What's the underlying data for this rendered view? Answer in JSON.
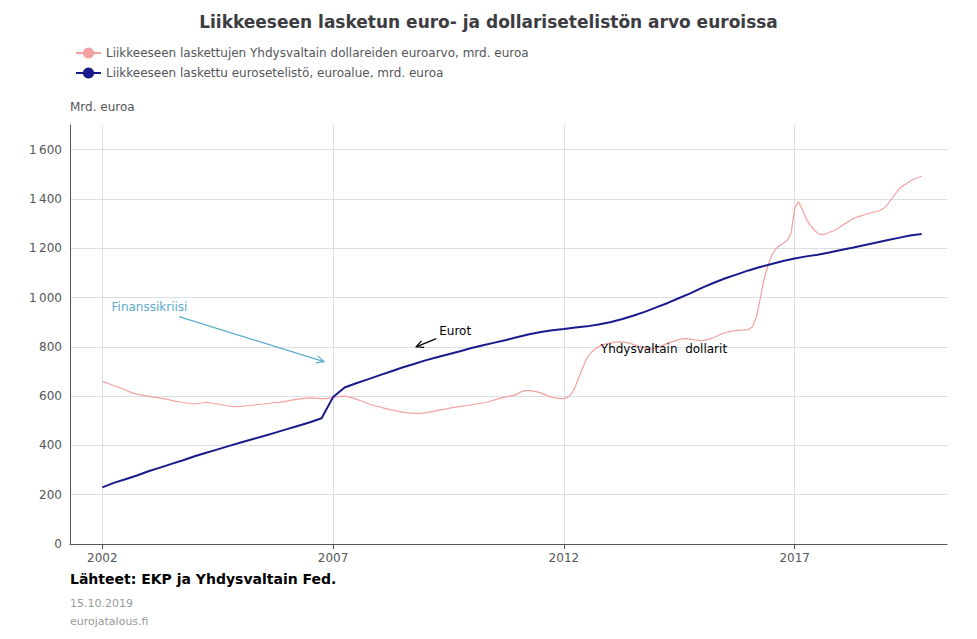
{
  "chart_data": {
    "type": "line",
    "title": "Liikkeeseen lasketun euro- ja dollarisetelistön arvo euroissa",
    "y_label": "Mrd. euroa",
    "xlim": [
      2001.3,
      2020.3
    ],
    "xticks": [
      2002,
      2007,
      2012,
      2017
    ],
    "ylim": [
      0,
      1700
    ],
    "yticks": [
      0,
      200,
      400,
      600,
      800,
      {
        "value": 1000,
        "label": "1 000"
      },
      {
        "value": 1200,
        "label": "1 200"
      },
      {
        "value": 1400,
        "label": "1 400"
      },
      {
        "value": 1600,
        "label": "1 600"
      }
    ],
    "grid": true,
    "legend": "upper left",
    "series": [
      {
        "name": "Liikkeeseen laskettujen Yhdysvaltain dollareiden euroarvo, mrd. euroa",
        "color": "#f4a0a0",
        "x": [
          2002.0,
          2002.08,
          2002.17,
          2002.25,
          2002.33,
          2002.42,
          2002.5,
          2002.58,
          2002.67,
          2002.75,
          2002.83,
          2002.92,
          2003.0,
          2003.08,
          2003.17,
          2003.25,
          2003.33,
          2003.42,
          2003.5,
          2003.58,
          2003.67,
          2003.75,
          2003.83,
          2003.92,
          2004.0,
          2004.08,
          2004.17,
          2004.25,
          2004.33,
          2004.42,
          2004.5,
          2004.58,
          2004.67,
          2004.75,
          2004.83,
          2004.92,
          2005.0,
          2005.08,
          2005.17,
          2005.25,
          2005.33,
          2005.42,
          2005.5,
          2005.58,
          2005.67,
          2005.75,
          2005.83,
          2005.92,
          2006.0,
          2006.08,
          2006.17,
          2006.25,
          2006.33,
          2006.42,
          2006.5,
          2006.58,
          2006.67,
          2006.75,
          2006.83,
          2006.92,
          2007.0,
          2007.08,
          2007.17,
          2007.25,
          2007.33,
          2007.42,
          2007.5,
          2007.58,
          2007.67,
          2007.75,
          2007.83,
          2007.92,
          2008.0,
          2008.08,
          2008.17,
          2008.25,
          2008.33,
          2008.42,
          2008.5,
          2008.58,
          2008.67,
          2008.75,
          2008.83,
          2008.92,
          2009.0,
          2009.08,
          2009.17,
          2009.25,
          2009.33,
          2009.42,
          2009.5,
          2009.58,
          2009.67,
          2009.75,
          2009.83,
          2009.92,
          2010.0,
          2010.08,
          2010.17,
          2010.25,
          2010.33,
          2010.42,
          2010.5,
          2010.58,
          2010.67,
          2010.75,
          2010.83,
          2010.92,
          2011.0,
          2011.08,
          2011.17,
          2011.25,
          2011.33,
          2011.42,
          2011.5,
          2011.58,
          2011.67,
          2011.75,
          2011.83,
          2011.92,
          2012.0,
          2012.08,
          2012.17,
          2012.25,
          2012.33,
          2012.42,
          2012.5,
          2012.58,
          2012.67,
          2012.75,
          2012.83,
          2012.92,
          2013.0,
          2013.08,
          2013.17,
          2013.25,
          2013.33,
          2013.42,
          2013.5,
          2013.58,
          2013.67,
          2013.75,
          2013.83,
          2013.92,
          2014.0,
          2014.08,
          2014.17,
          2014.25,
          2014.33,
          2014.42,
          2014.5,
          2014.58,
          2014.67,
          2014.75,
          2014.83,
          2014.92,
          2015.0,
          2015.08,
          2015.17,
          2015.25,
          2015.33,
          2015.42,
          2015.5,
          2015.58,
          2015.67,
          2015.75,
          2015.83,
          2015.92,
          2016.0,
          2016.08,
          2016.17,
          2016.25,
          2016.33,
          2016.42,
          2016.5,
          2016.58,
          2016.67,
          2016.75,
          2016.83,
          2016.92,
          2017.0,
          2017.08,
          2017.17,
          2017.25,
          2017.33,
          2017.42,
          2017.5,
          2017.58,
          2017.67,
          2017.75,
          2017.83,
          2017.92,
          2018.0,
          2018.08,
          2018.17,
          2018.25,
          2018.33,
          2018.42,
          2018.5,
          2018.58,
          2018.67,
          2018.75,
          2018.83,
          2018.92,
          2019.0,
          2019.08,
          2019.17,
          2019.25,
          2019.33,
          2019.42,
          2019.5,
          2019.58,
          2019.67,
          2019.75
        ],
        "values": [
          660,
          655,
          648,
          642,
          638,
          632,
          625,
          618,
          612,
          608,
          605,
          602,
          600,
          597,
          595,
          592,
          590,
          587,
          583,
          580,
          577,
          574,
          572,
          570,
          568,
          570,
          572,
          575,
          573,
          570,
          568,
          565,
          562,
          560,
          558,
          557,
          558,
          560,
          562,
          563,
          565,
          567,
          568,
          570,
          572,
          574,
          575,
          577,
          580,
          583,
          586,
          588,
          590,
          592,
          593,
          592,
          591,
          590,
          590,
          592,
          594,
          597,
          599,
          600,
          597,
          593,
          588,
          582,
          576,
          570,
          565,
          560,
          557,
          552,
          548,
          544,
          541,
          538,
          535,
          533,
          531,
          530,
          530,
          531,
          532,
          535,
          538,
          541,
          544,
          547,
          550,
          553,
          555,
          558,
          560,
          562,
          565,
          568,
          570,
          572,
          575,
          580,
          585,
          590,
          594,
          597,
          600,
          603,
          610,
          618,
          622,
          622,
          620,
          617,
          613,
          607,
          600,
          595,
          592,
          590,
          590,
          595,
          610,
          640,
          680,
          720,
          755,
          775,
          790,
          800,
          808,
          812,
          815,
          818,
          820,
          820,
          818,
          815,
          810,
          805,
          800,
          795,
          793,
          792,
          795,
          800,
          808,
          815,
          820,
          825,
          830,
          833,
          833,
          830,
          828,
          826,
          825,
          828,
          832,
          838,
          845,
          852,
          858,
          862,
          865,
          867,
          868,
          869,
          870,
          880,
          920,
          990,
          1070,
          1130,
          1170,
          1195,
          1210,
          1220,
          1230,
          1260,
          1360,
          1390,
          1355,
          1320,
          1295,
          1275,
          1260,
          1255,
          1258,
          1265,
          1270,
          1278,
          1288,
          1298,
          1308,
          1318,
          1325,
          1330,
          1335,
          1340,
          1345,
          1348,
          1352,
          1360,
          1375,
          1395,
          1418,
          1438,
          1452,
          1462,
          1472,
          1480,
          1487,
          1492
        ]
      },
      {
        "name": "Liikkeeseen laskettu eurosetelistö, euroalue, mrd. euroa",
        "color": "#1a1a8c",
        "x": [
          2002.0,
          2002.25,
          2002.5,
          2002.75,
          2003.0,
          2003.25,
          2003.5,
          2003.75,
          2004.0,
          2004.25,
          2004.5,
          2004.75,
          2005.0,
          2005.25,
          2005.5,
          2005.75,
          2006.0,
          2006.25,
          2006.5,
          2006.75,
          2007.0,
          2007.25,
          2007.5,
          2007.75,
          2008.0,
          2008.25,
          2008.5,
          2008.75,
          2009.0,
          2009.25,
          2009.5,
          2009.75,
          2010.0,
          2010.25,
          2010.5,
          2010.75,
          2011.0,
          2011.25,
          2011.5,
          2011.75,
          2012.0,
          2012.25,
          2012.5,
          2012.75,
          2013.0,
          2013.25,
          2013.5,
          2013.75,
          2014.0,
          2014.25,
          2014.5,
          2014.75,
          2015.0,
          2015.25,
          2015.5,
          2015.75,
          2016.0,
          2016.25,
          2016.5,
          2016.75,
          2017.0,
          2017.25,
          2017.5,
          2017.75,
          2018.0,
          2018.25,
          2018.5,
          2018.75,
          2019.0,
          2019.25,
          2019.5,
          2019.75
        ],
        "values": [
          230,
          248,
          263,
          278,
          295,
          310,
          325,
          340,
          356,
          370,
          384,
          398,
          412,
          425,
          438,
          452,
          466,
          480,
          494,
          510,
          596,
          635,
          652,
          668,
          684,
          700,
          716,
          730,
          745,
          758,
          770,
          782,
          795,
          806,
          817,
          828,
          840,
          851,
          860,
          867,
          872,
          878,
          883,
          891,
          900,
          912,
          926,
          942,
          960,
          978,
          998,
          1018,
          1040,
          1060,
          1078,
          1094,
          1110,
          1124,
          1136,
          1148,
          1158,
          1167,
          1174,
          1183,
          1193,
          1202,
          1212,
          1222,
          1232,
          1242,
          1252,
          1258
        ]
      }
    ],
    "annotations": [
      {
        "text": "Finanssikriisi",
        "x": 2002.2,
        "y": 960,
        "arrow_x": 2006.8,
        "arrow_y": 740,
        "color": "#5aabcc"
      },
      {
        "text": "Eurot",
        "x": 2009.3,
        "y": 865,
        "arrow_x": 2008.8,
        "arrow_y": 800,
        "color": "#000000"
      },
      {
        "text": "Yhdysvaltain  dollarit",
        "x": 2012.8,
        "y": 790,
        "color": "#000000"
      }
    ],
    "footer": [
      "Lähteet: EKP ja Yhdysvaltain Fed.",
      "15.10.2019",
      "eurojatalous.fi"
    ]
  }
}
